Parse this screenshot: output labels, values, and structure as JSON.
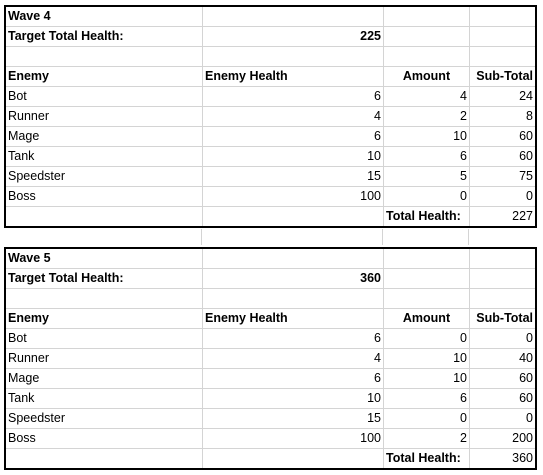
{
  "waves": [
    {
      "title": "Wave 4",
      "target_label": "Target Total Health:",
      "target_value": "225",
      "headers": {
        "enemy": "Enemy",
        "health": "Enemy Health",
        "amount": "Amount",
        "subtotal": "Sub-Total"
      },
      "rows": [
        {
          "enemy": "Bot",
          "health": "6",
          "amount": "4",
          "subtotal": "24"
        },
        {
          "enemy": "Runner",
          "health": "4",
          "amount": "2",
          "subtotal": "8"
        },
        {
          "enemy": "Mage",
          "health": "6",
          "amount": "10",
          "subtotal": "60"
        },
        {
          "enemy": "Tank",
          "health": "10",
          "amount": "6",
          "subtotal": "60"
        },
        {
          "enemy": "Speedster",
          "health": "15",
          "amount": "5",
          "subtotal": "75"
        },
        {
          "enemy": "Boss",
          "health": "100",
          "amount": "0",
          "subtotal": "0"
        }
      ],
      "total_label": "Total Health:",
      "total_value": "227"
    },
    {
      "title": "Wave 5",
      "target_label": "Target Total Health:",
      "target_value": "360",
      "headers": {
        "enemy": "Enemy",
        "health": "Enemy Health",
        "amount": "Amount",
        "subtotal": "Sub-Total"
      },
      "rows": [
        {
          "enemy": "Bot",
          "health": "6",
          "amount": "0",
          "subtotal": "0"
        },
        {
          "enemy": "Runner",
          "health": "4",
          "amount": "10",
          "subtotal": "40"
        },
        {
          "enemy": "Mage",
          "health": "6",
          "amount": "10",
          "subtotal": "60"
        },
        {
          "enemy": "Tank",
          "health": "10",
          "amount": "6",
          "subtotal": "60"
        },
        {
          "enemy": "Speedster",
          "health": "15",
          "amount": "0",
          "subtotal": "0"
        },
        {
          "enemy": "Boss",
          "health": "100",
          "amount": "2",
          "subtotal": "200"
        }
      ],
      "total_label": "Total Health:",
      "total_value": "360"
    }
  ]
}
